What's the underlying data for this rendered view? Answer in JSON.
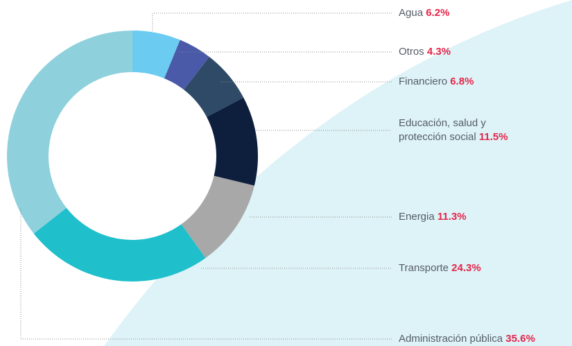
{
  "chart_data": {
    "type": "donut",
    "categories": [
      "Agua",
      "Otros",
      "Financiero",
      "Educación, salud y protección social",
      "Energia",
      "Transporte",
      "Administración pública"
    ],
    "values": [
      6.2,
      4.3,
      6.8,
      11.5,
      11.3,
      24.3,
      35.6
    ],
    "value_labels": [
      "6.2%",
      "4.3%",
      "6.8%",
      "11.5%",
      "11.3%",
      "24.3%",
      "35.6%"
    ],
    "colors": [
      "#6ccbf0",
      "#4a5aa8",
      "#2f4a66",
      "#0e1f3d",
      "#a8a8a8",
      "#1fbfcc",
      "#8ed1dc"
    ]
  }
}
